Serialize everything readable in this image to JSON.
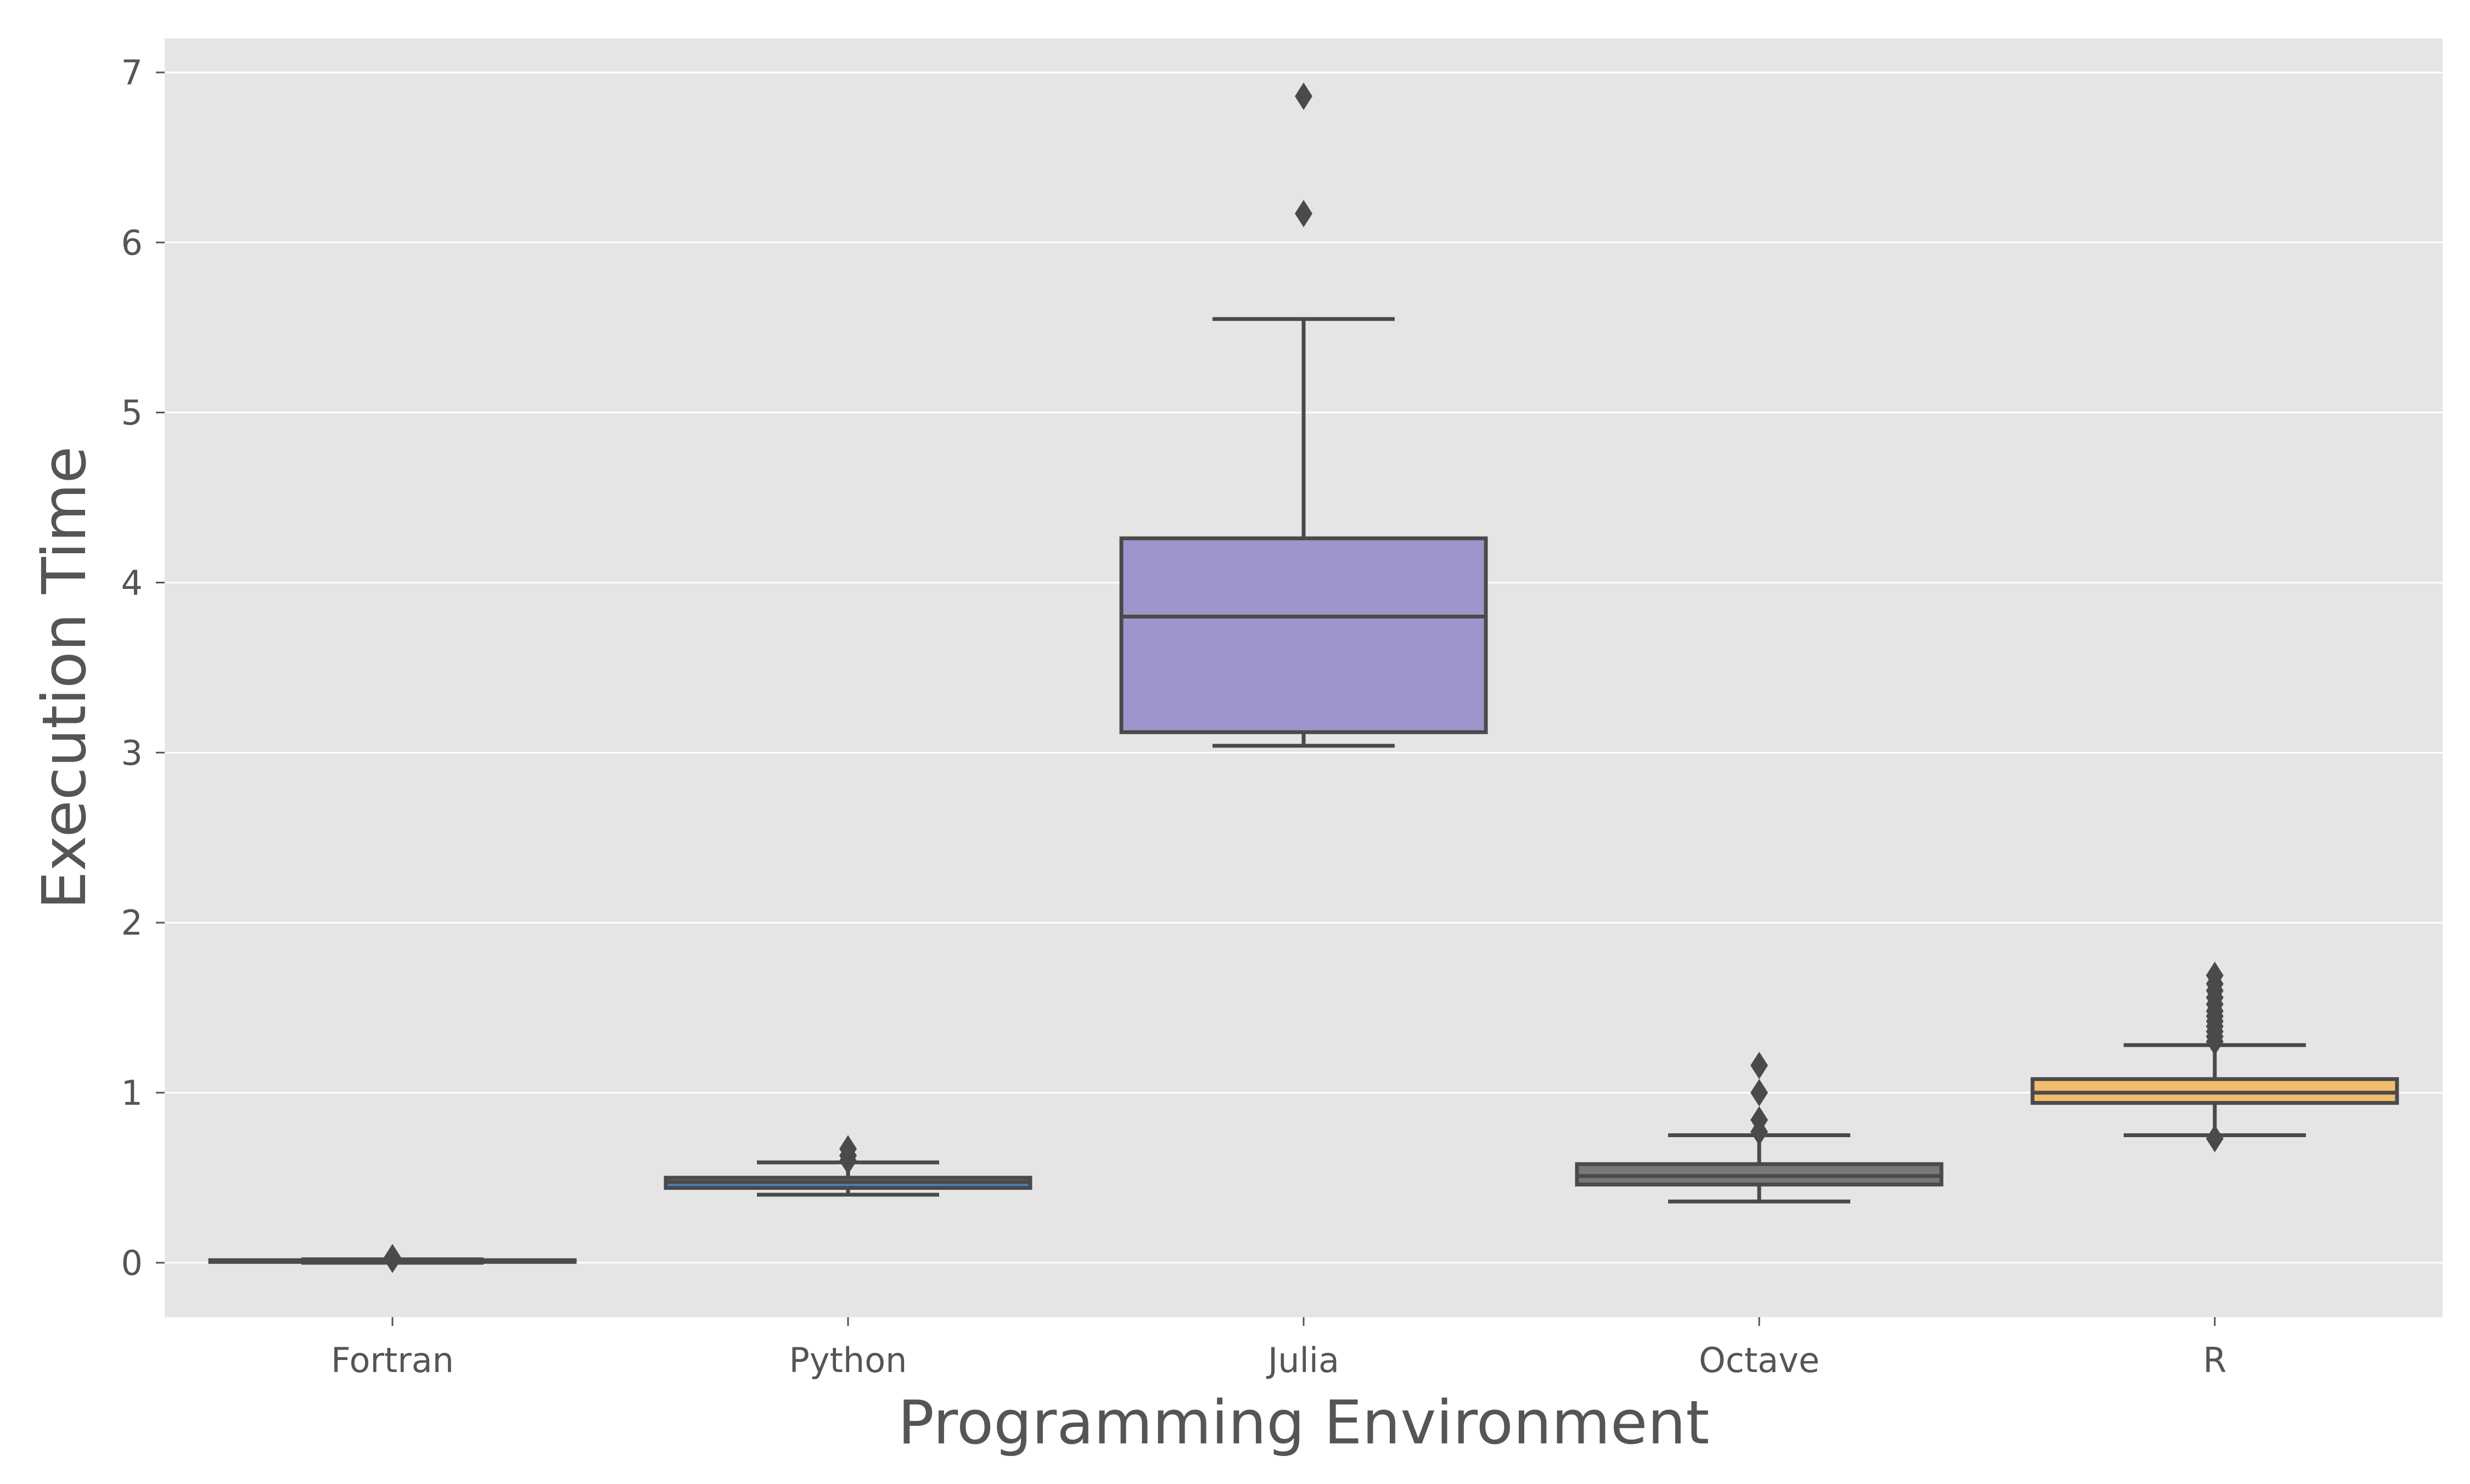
{
  "chart_data": {
    "type": "box",
    "xlabel": "Programming Environment",
    "ylabel": "Execution Time",
    "ylim": [
      -0.32,
      7.2
    ],
    "yticks": [
      0,
      1,
      2,
      3,
      4,
      5,
      6,
      7
    ],
    "grid": "horizontal",
    "legend": "none",
    "colors": {
      "panel_background": "#e5e5e5",
      "grid": "#ffffff",
      "box_edge": "#4a4a4a"
    },
    "categories": [
      "Fortran",
      "Python",
      "Julia",
      "Octave",
      "R"
    ],
    "boxes": [
      {
        "category": "Fortran",
        "whisker_low": 0.0,
        "q1": 0.005,
        "median": 0.01,
        "q3": 0.015,
        "whisker_high": 0.02,
        "outliers": [
          0.02,
          0.03
        ],
        "color": "#c8534a"
      },
      {
        "category": "Python",
        "whisker_low": 0.4,
        "q1": 0.44,
        "median": 0.475,
        "q3": 0.5,
        "whisker_high": 0.59,
        "outliers": [
          0.6,
          0.63,
          0.67
        ],
        "color": "#4d7fb0"
      },
      {
        "category": "Julia",
        "whisker_low": 3.04,
        "q1": 3.12,
        "median": 3.8,
        "q3": 4.26,
        "whisker_high": 5.55,
        "outliers": [
          6.17,
          6.86
        ],
        "color": "#9d96cc"
      },
      {
        "category": "Octave",
        "whisker_low": 0.36,
        "q1": 0.46,
        "median": 0.51,
        "q3": 0.58,
        "whisker_high": 0.75,
        "outliers": [
          0.77,
          0.84,
          1.0,
          1.16
        ],
        "color": "#787878"
      },
      {
        "category": "R",
        "whisker_low": 0.75,
        "q1": 0.94,
        "median": 1.0,
        "q3": 1.08,
        "whisker_high": 1.28,
        "outliers": [
          0.73,
          1.3,
          1.33,
          1.36,
          1.39,
          1.42,
          1.45,
          1.48,
          1.52,
          1.56,
          1.6,
          1.64,
          1.69
        ],
        "color": "#f3bd6e"
      }
    ]
  }
}
